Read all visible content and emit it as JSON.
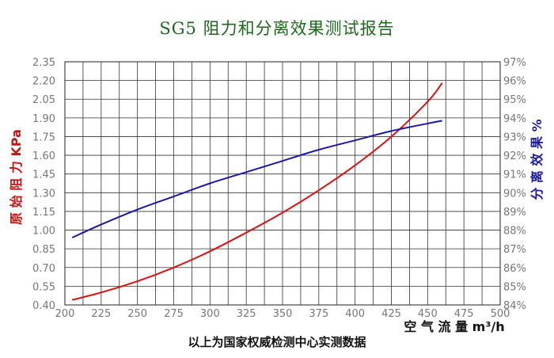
{
  "title": "SG5 阻力和分离效果测试报告",
  "footnote": "以上为国家权威检测中心实测数据",
  "chart_data": {
    "type": "line",
    "xlabel": "空 气 流 量 m³/h",
    "ylabel_left": "原 始 阻 力 KPa",
    "ylabel_right": "分 离 效 果 %",
    "xlim": [
      200,
      500
    ],
    "ylim_left": [
      0.4,
      2.35
    ],
    "ylim_right": [
      84,
      97
    ],
    "x_ticks": [
      "200",
      "225",
      "250",
      "275",
      "300",
      "325",
      "350",
      "375",
      "400",
      "425",
      "450",
      "475",
      "500"
    ],
    "y_left_ticks": [
      "0.40",
      "0.55",
      "0.70",
      "0.85",
      "1.00",
      "1.15",
      "1.30",
      "1.45",
      "1.60",
      "1.75",
      "1.90",
      "2.05",
      "2.20",
      "2.35"
    ],
    "y_right_ticks": [
      "84%",
      "85%",
      "86%",
      "87%",
      "88%",
      "89%",
      "90%",
      "91%",
      "92%",
      "93%",
      "94%",
      "95%",
      "96%",
      "97%"
    ],
    "grid": true,
    "series": [
      {
        "axis": "left",
        "color": "#dd1111",
        "points": [
          [
            205,
            0.44
          ],
          [
            225,
            0.5
          ],
          [
            250,
            0.59
          ],
          [
            275,
            0.7
          ],
          [
            300,
            0.83
          ],
          [
            325,
            0.98
          ],
          [
            350,
            1.14
          ],
          [
            375,
            1.32
          ],
          [
            400,
            1.52
          ],
          [
            425,
            1.75
          ],
          [
            450,
            2.03
          ],
          [
            460,
            2.18
          ]
        ]
      },
      {
        "axis": "right",
        "color": "#1a1aa6",
        "points": [
          [
            205,
            87.6
          ],
          [
            225,
            88.3
          ],
          [
            250,
            89.1
          ],
          [
            275,
            89.8
          ],
          [
            300,
            90.5
          ],
          [
            325,
            91.1
          ],
          [
            350,
            91.7
          ],
          [
            375,
            92.3
          ],
          [
            400,
            92.8
          ],
          [
            425,
            93.3
          ],
          [
            450,
            93.7
          ],
          [
            460,
            93.85
          ]
        ]
      }
    ]
  }
}
